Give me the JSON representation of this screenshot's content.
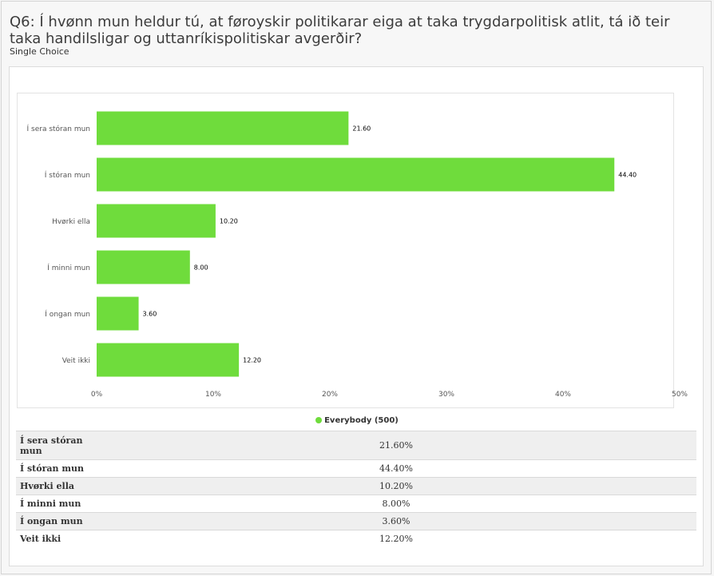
{
  "question": {
    "title": "Q6: Í hvønn mun heldur tú, at føroyskir politikarar eiga at taka trygdarpolitisk atlit, tá ið teir taka handilsligar og uttanríkispolitiskar avgerðir?",
    "type": "Single Choice"
  },
  "legend": {
    "label": "Everybody (500)",
    "color": "#6fdc3c"
  },
  "chart_data": {
    "type": "bar",
    "orientation": "horizontal",
    "categories": [
      "Í sera stóran mun",
      "Í stóran mun",
      "Hvørki ella",
      "Í minni mun",
      "Í ongan mun",
      "Veit ikki"
    ],
    "series": [
      {
        "name": "Everybody (500)",
        "values": [
          21.6,
          44.4,
          10.2,
          8.0,
          3.6,
          12.2
        ]
      }
    ],
    "data_labels": [
      "21.60",
      "44.40",
      "10.20",
      "8.00",
      "3.60",
      "12.20"
    ],
    "xlim": [
      0,
      50
    ],
    "xticks": [
      "0%",
      "10%",
      "20%",
      "30%",
      "40%",
      "50%"
    ],
    "bar_color": "#6fdc3c",
    "grid": false
  },
  "table": {
    "rows": [
      {
        "label": "Í sera stóran mun",
        "value": "21.60%"
      },
      {
        "label": "Í stóran mun",
        "value": "44.40%"
      },
      {
        "label": "Hvørki ella",
        "value": "10.20%"
      },
      {
        "label": "Í minni mun",
        "value": "8.00%"
      },
      {
        "label": "Í ongan mun",
        "value": "3.60%"
      },
      {
        "label": "Veit ikki",
        "value": "12.20%"
      }
    ]
  }
}
